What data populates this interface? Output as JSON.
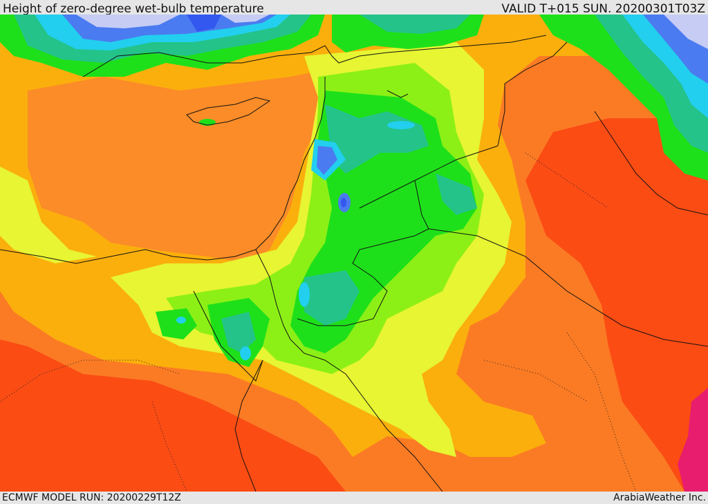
{
  "header": {
    "title": "Height of zero-degree wet-bulb temperature",
    "valid_time": "VALID T+015 SUN. 20200301T03Z"
  },
  "footer": {
    "model_run": "ECMWF MODEL RUN: 20200229T12Z",
    "credit": "ArabiaWeather Inc."
  },
  "map": {
    "region": "Eastern Mediterranean / Levant / Northern Arabia",
    "colors": {
      "red": "#fb4c14",
      "dark_orange": "#fb7b24",
      "orange": "#fbaf0c",
      "yellow": "#e7f532",
      "light_green": "#8cf016",
      "green": "#1ee01a",
      "teal": "#23c38a",
      "cyan": "#22cfee",
      "blue": "#4b7bf0",
      "deep_blue": "#3358f0",
      "lavender": "#c6ccf3",
      "magenta": "#e81d6e"
    }
  }
}
